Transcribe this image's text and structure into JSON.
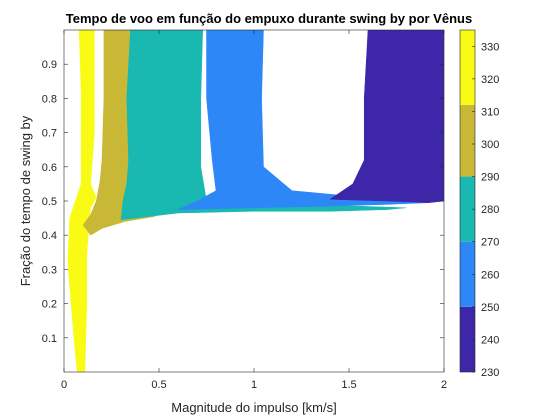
{
  "chart_data": {
    "type": "heatmap",
    "title": "Tempo de voo em função do empuxo durante swing by por Vênus",
    "xlabel": "Magnitude do impulso [km/s]",
    "ylabel": "Fração do tempo de swing by",
    "xlim": [
      0,
      2
    ],
    "ylim": [
      0,
      1
    ],
    "x_ticks": [
      "0",
      "0.5",
      "1",
      "1.5",
      "2"
    ],
    "x_tick_values": [
      0,
      0.5,
      1,
      1.5,
      2
    ],
    "y_ticks": [
      "0.1",
      "0.2",
      "0.3",
      "0.4",
      "0.5",
      "0.6",
      "0.7",
      "0.8",
      "0.9"
    ],
    "y_tick_values": [
      0.1,
      0.2,
      0.3,
      0.4,
      0.5,
      0.6,
      0.7,
      0.8,
      0.9
    ],
    "grid": false,
    "colorbar": {
      "range": [
        230,
        335
      ],
      "ticks": [
        "230",
        "240",
        "250",
        "260",
        "270",
        "280",
        "290",
        "300",
        "310",
        "320",
        "330"
      ],
      "tick_values": [
        230,
        240,
        250,
        260,
        270,
        280,
        290,
        300,
        310,
        320,
        330
      ],
      "bands": [
        {
          "from": 230,
          "to": 250,
          "color": "#3e26a8"
        },
        {
          "from": 250,
          "to": 270,
          "color": "#2e87f7"
        },
        {
          "from": 270,
          "to": 290,
          "color": "#19b8b1"
        },
        {
          "from": 290,
          "to": 312,
          "color": "#c8b835"
        },
        {
          "from": 312,
          "to": 335,
          "color": "#f9fb15"
        }
      ]
    },
    "regions": [
      {
        "value": 325,
        "color": "#f9fb15",
        "points": [
          [
            0.07,
            0.0
          ],
          [
            0.11,
            0.0
          ],
          [
            0.12,
            0.2
          ],
          [
            0.12,
            0.35
          ],
          [
            0.14,
            0.48
          ],
          [
            0.17,
            0.51
          ],
          [
            0.14,
            0.55
          ],
          [
            0.16,
            0.7
          ],
          [
            0.16,
            1.0
          ],
          [
            0.08,
            1.0
          ],
          [
            0.09,
            0.82
          ],
          [
            0.09,
            0.62
          ],
          [
            0.09,
            0.55
          ],
          [
            0.06,
            0.5
          ],
          [
            0.03,
            0.45
          ],
          [
            0.02,
            0.32
          ],
          [
            0.04,
            0.18
          ],
          [
            0.06,
            0.05
          ]
        ]
      },
      {
        "value": 300,
        "color": "#c8b835",
        "points": [
          [
            0.14,
            0.4
          ],
          [
            0.2,
            0.42
          ],
          [
            0.32,
            0.44
          ],
          [
            0.48,
            0.455
          ],
          [
            0.4,
            0.47
          ],
          [
            0.32,
            0.52
          ],
          [
            0.38,
            0.56
          ],
          [
            0.36,
            0.62
          ],
          [
            0.35,
            0.8
          ],
          [
            0.37,
            1.0
          ],
          [
            0.21,
            1.0
          ],
          [
            0.21,
            0.8
          ],
          [
            0.2,
            0.62
          ],
          [
            0.19,
            0.56
          ],
          [
            0.17,
            0.5
          ],
          [
            0.14,
            0.46
          ],
          [
            0.1,
            0.43
          ]
        ]
      },
      {
        "value": 280,
        "color": "#19b8b1",
        "points": [
          [
            0.3,
            0.445
          ],
          [
            0.6,
            0.465
          ],
          [
            1.0,
            0.47
          ],
          [
            1.4,
            0.47
          ],
          [
            1.7,
            0.475
          ],
          [
            1.8,
            0.48
          ],
          [
            0.75,
            0.5
          ],
          [
            0.72,
            0.6
          ],
          [
            0.72,
            0.8
          ],
          [
            0.73,
            1.0
          ],
          [
            0.35,
            1.0
          ],
          [
            0.33,
            0.8
          ],
          [
            0.34,
            0.62
          ],
          [
            0.33,
            0.55
          ],
          [
            0.31,
            0.5
          ]
        ]
      },
      {
        "value": 265,
        "color": "#2e87f7",
        "points": [
          [
            0.6,
            0.475
          ],
          [
            1.0,
            0.48
          ],
          [
            1.4,
            0.485
          ],
          [
            1.7,
            0.49
          ],
          [
            1.92,
            0.495
          ],
          [
            1.7,
            0.505
          ],
          [
            1.4,
            0.52
          ],
          [
            1.2,
            0.53
          ],
          [
            1.05,
            0.6
          ],
          [
            1.04,
            0.8
          ],
          [
            1.05,
            1.0
          ],
          [
            0.75,
            1.0
          ],
          [
            0.75,
            0.8
          ],
          [
            0.78,
            0.62
          ],
          [
            0.8,
            0.53
          ],
          [
            0.7,
            0.5
          ]
        ]
      },
      {
        "value": 240,
        "color": "#3e26a8",
        "points": [
          [
            1.4,
            0.505
          ],
          [
            1.7,
            0.5
          ],
          [
            1.92,
            0.495
          ],
          [
            2.0,
            0.5
          ],
          [
            2.0,
            1.0
          ],
          [
            1.6,
            1.0
          ],
          [
            1.58,
            0.8
          ],
          [
            1.58,
            0.62
          ],
          [
            1.52,
            0.55
          ]
        ]
      }
    ]
  }
}
